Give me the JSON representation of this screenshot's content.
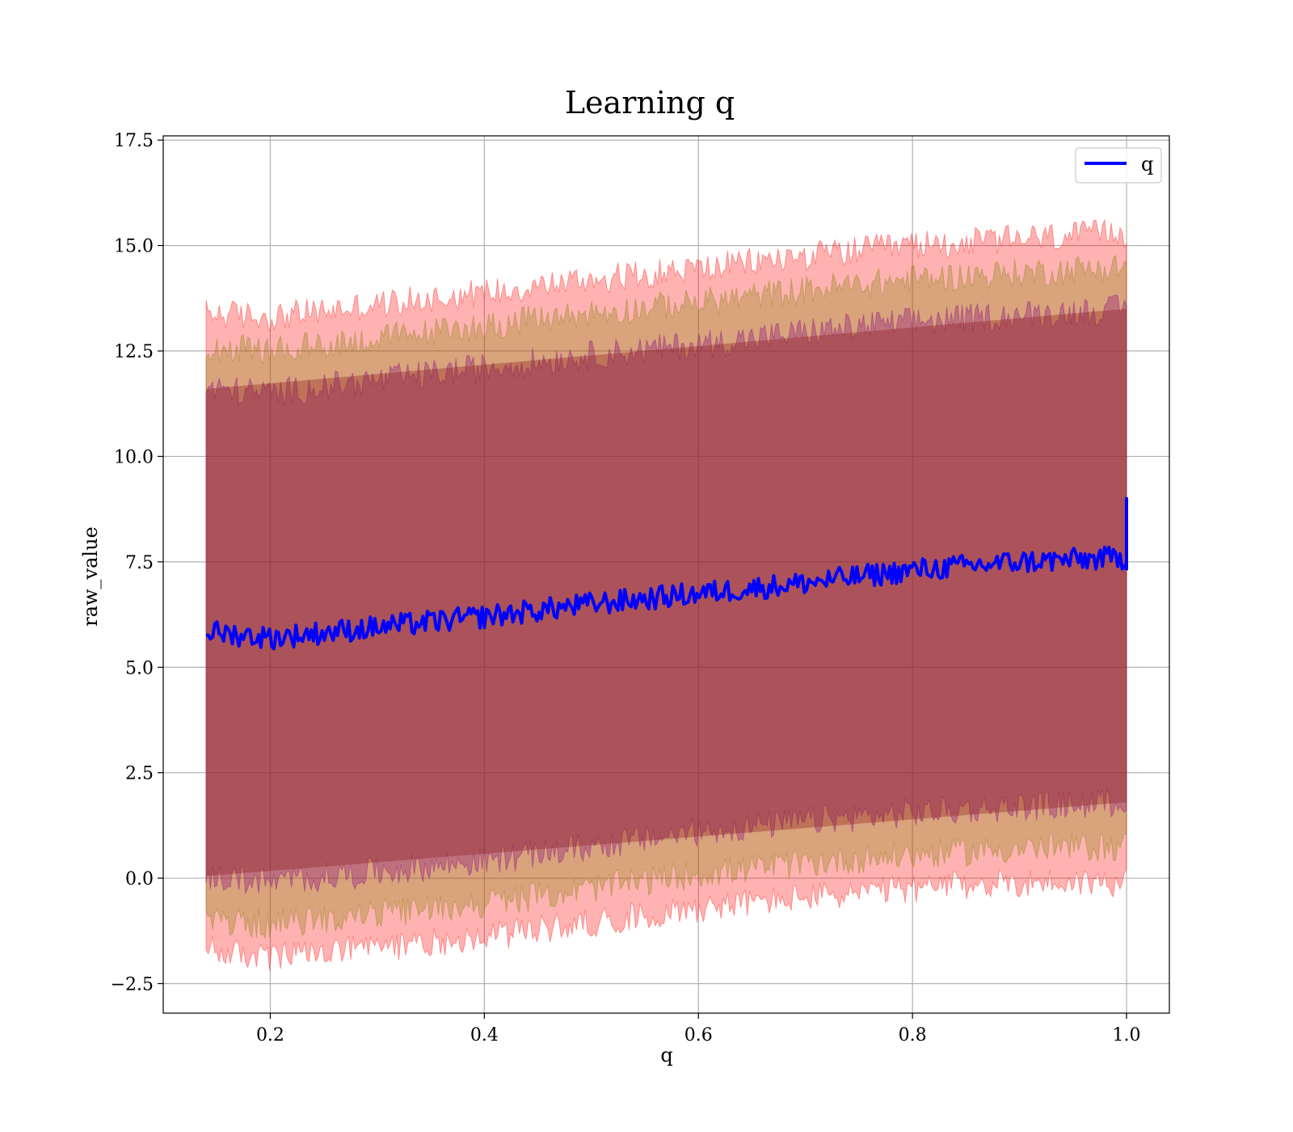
{
  "chart_data": {
    "type": "line",
    "title": "Learning q",
    "xlabel": "q",
    "ylabel": "raw_value",
    "xlim": [
      0.1,
      1.04
    ],
    "ylim": [
      -3.2,
      17.6
    ],
    "xticks": [
      0.2,
      0.4,
      0.6,
      0.8,
      1.0
    ],
    "xtick_labels": [
      "0.2",
      "0.4",
      "0.6",
      "0.8",
      "1.0"
    ],
    "yticks": [
      -2.5,
      0.0,
      2.5,
      5.0,
      7.5,
      10.0,
      12.5,
      15.0,
      17.5
    ],
    "ytick_labels": [
      "−2.5",
      "0.0",
      "2.5",
      "5.0",
      "7.5",
      "10.0",
      "12.5",
      "15.0",
      "17.5"
    ],
    "grid": true,
    "legend_position": "top-right",
    "x_range": [
      0.14,
      1.0
    ],
    "series": [
      {
        "name": "q",
        "color": "#0000ff",
        "x": [
          0.14,
          0.2,
          0.3,
          0.4,
          0.5,
          0.6,
          0.7,
          0.8,
          0.9,
          1.0
        ],
        "values": [
          5.85,
          5.7,
          5.95,
          6.2,
          6.5,
          6.75,
          7.0,
          7.3,
          7.5,
          7.6
        ],
        "end_spike": 9.0
      }
    ],
    "bands": [
      {
        "color": "#ff0000",
        "opacity": 0.3,
        "x": [
          0.14,
          0.2,
          0.3,
          0.4,
          0.5,
          0.6,
          0.7,
          0.8,
          0.9,
          1.0
        ],
        "upper": [
          13.4,
          13.3,
          13.6,
          13.9,
          14.2,
          14.45,
          14.75,
          15.0,
          15.15,
          15.3
        ],
        "lower": [
          -1.7,
          -1.9,
          -1.65,
          -1.4,
          -1.05,
          -0.7,
          -0.45,
          -0.25,
          -0.1,
          -0.1
        ]
      },
      {
        "color": "#808000",
        "opacity": 0.3,
        "x": [
          0.14,
          0.2,
          0.3,
          0.4,
          0.5,
          0.6,
          0.7,
          0.8,
          0.9,
          1.0
        ],
        "upper": [
          12.6,
          12.5,
          12.8,
          13.1,
          13.4,
          13.65,
          13.95,
          14.2,
          14.35,
          14.5
        ],
        "lower": [
          -1.0,
          -1.1,
          -0.85,
          -0.6,
          -0.25,
          0.1,
          0.35,
          0.55,
          0.7,
          0.75
        ]
      },
      {
        "color": "#800080",
        "opacity": 0.3,
        "x": [
          0.14,
          0.2,
          0.3,
          0.4,
          0.5,
          0.6,
          0.7,
          0.8,
          0.9,
          1.0
        ],
        "upper": [
          11.6,
          11.5,
          11.8,
          12.1,
          12.4,
          12.65,
          12.95,
          13.2,
          13.35,
          13.5
        ],
        "lower": [
          0.05,
          -0.1,
          0.15,
          0.4,
          0.75,
          1.1,
          1.35,
          1.55,
          1.7,
          1.8
        ]
      },
      {
        "color": "#8b1a1a",
        "opacity": 0.35,
        "x": [
          0.14,
          1.0
        ],
        "upper": [
          11.6,
          13.5
        ],
        "lower": [
          0.05,
          1.8
        ]
      }
    ]
  }
}
